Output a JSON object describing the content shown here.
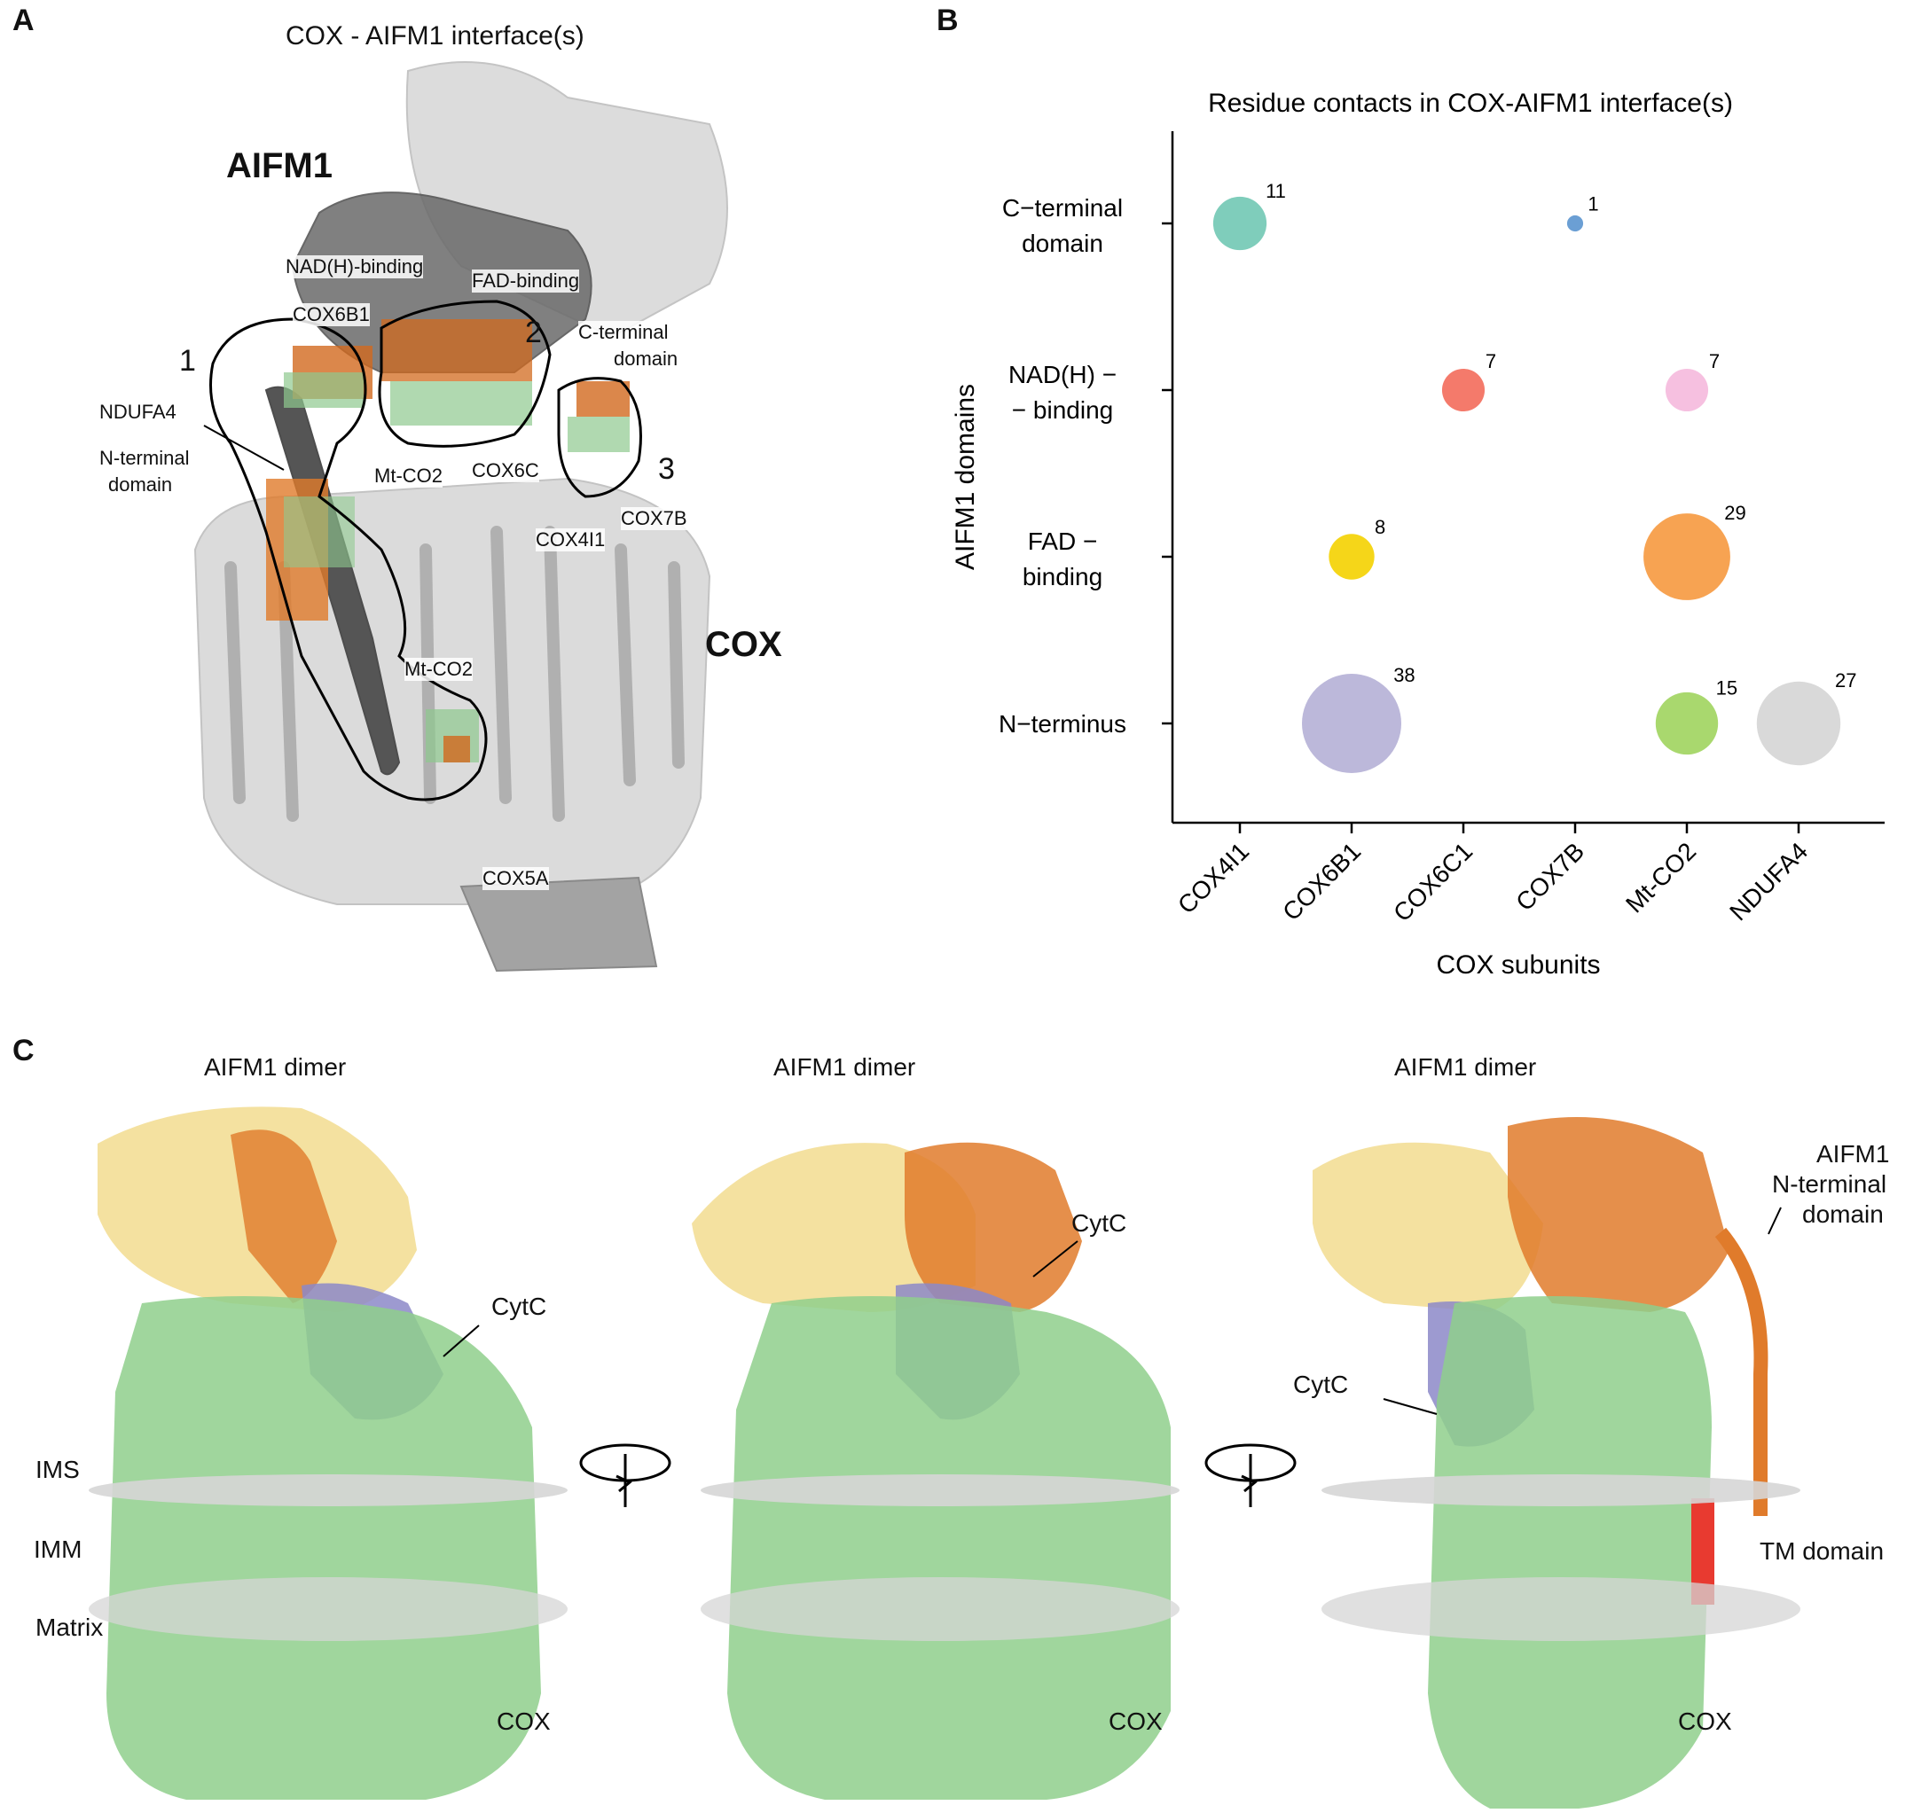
{
  "panel_a": {
    "letter": "A",
    "title": "COX - AIFM1 interface(s)",
    "aifm1_label": "AIFM1",
    "cox_label": "COX",
    "region_labels": [
      "1",
      "2",
      "3"
    ],
    "domain_labels": {
      "nadh_binding": "NAD(H)-binding",
      "fad_binding": "FAD-binding",
      "c_terminal_line1": "C-terminal",
      "c_terminal_line2": "domain",
      "n_terminal_line1": "N-terminal",
      "n_terminal_line2": "domain"
    },
    "subunit_labels": {
      "cox6b1": "COX6B1",
      "ndufa4": "NDUFA4",
      "mtco2_a": "Mt-CO2",
      "cox6c": "COX6C",
      "cox7b": "COX7B",
      "cox4i1": "COX4I1",
      "mtco2_b": "Mt-CO2",
      "cox5a": "COX5A"
    }
  },
  "panel_b": {
    "letter": "B"
  },
  "chart_data": {
    "type": "scatter",
    "title": "Residue contacts in COX-AIFM1 interface(s)",
    "xlabel": "COX subunits",
    "ylabel": "AIFM1 domains",
    "x_categories": [
      "COX4I1",
      "COX6B1",
      "COX6C1",
      "COX7B",
      "Mt-CO2",
      "NDUFA4"
    ],
    "y_categories": [
      {
        "line1": "N−terminus",
        "line2": ""
      },
      {
        "line1": "FAD −",
        "line2": "binding"
      },
      {
        "line1": "NAD(H) −",
        "line2": "− binding"
      },
      {
        "line1": "C−terminal",
        "line2": "domain"
      }
    ],
    "points": [
      {
        "x": "COX4I1",
        "y": 3,
        "value": 11,
        "color": "#7fcdbb"
      },
      {
        "x": "COX7B",
        "y": 3,
        "value": 1,
        "color": "#6b9fd4"
      },
      {
        "x": "COX6C1",
        "y": 2,
        "value": 7,
        "color": "#f47a6b"
      },
      {
        "x": "Mt-CO2",
        "y": 2,
        "value": 7,
        "color": "#f6c0e0"
      },
      {
        "x": "COX6B1",
        "y": 1,
        "value": 8,
        "color": "#f5d619"
      },
      {
        "x": "Mt-CO2",
        "y": 1,
        "value": 29,
        "color": "#f7a352"
      },
      {
        "x": "COX6B1",
        "y": 0,
        "value": 38,
        "color": "#bcb8da"
      },
      {
        "x": "Mt-CO2",
        "y": 0,
        "value": 15,
        "color": "#a9d86e"
      },
      {
        "x": "NDUFA4",
        "y": 0,
        "value": 27,
        "color": "#d9d9d9"
      }
    ],
    "size_encoding": "area proportional to residue contact count",
    "grid": false,
    "legend": "none"
  },
  "panel_c": {
    "letter": "C",
    "views": [
      {
        "title": "AIFM1 dimer",
        "cytc": "CytC",
        "cox": "COX",
        "ims": "IMS",
        "imm": "IMM",
        "matrix": "Matrix"
      },
      {
        "title": "AIFM1 dimer",
        "cytc": "CytC",
        "cox": "COX"
      },
      {
        "title": "AIFM1 dimer",
        "cytc": "CytC",
        "cox": "COX",
        "nterm_line1": "AIFM1",
        "nterm_line2": "N-terminal",
        "nterm_line3": "domain",
        "tm": "TM domain"
      }
    ]
  },
  "colors": {
    "aifm1_dark": "#5c5c5c",
    "cox_light": "#cfcfcf",
    "orange_residue": "#d2691e",
    "green_residue": "#8fc98f",
    "aifm1_monomer_yellow": "#f2dc8f",
    "aifm1_monomer_orange": "#e07b2b",
    "cytc_purple": "#8c88c8",
    "cox_green": "#8fcf8c",
    "tm_red": "#e83a30"
  }
}
